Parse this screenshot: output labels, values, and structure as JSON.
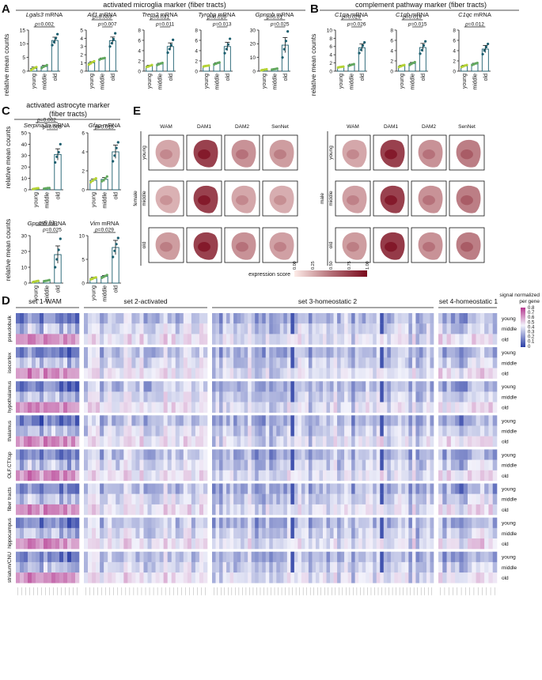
{
  "panel_a": {
    "letter": "A",
    "title": "activated microglia marker (fiber tracts)",
    "ylabel": "relative mean counts",
    "groups": [
      "young",
      "middle",
      "old"
    ],
    "charts": [
      {
        "gene": "Lgals3",
        "unit": "mRNA",
        "ymax": 15,
        "ticks": [
          0,
          5,
          10,
          15
        ],
        "values": [
          1,
          1.7,
          11.2
        ],
        "errors": [
          0.5,
          0.4,
          1.2
        ],
        "points": [
          [
            0.4,
            0.9,
            1.2,
            1.5
          ],
          [
            1.1,
            1.6,
            1.9,
            2.2
          ],
          [
            9.5,
            10.6,
            12.0,
            13.5
          ]
        ],
        "pvals": [
          {
            "text": "p=0.002",
            "from": 0,
            "to": 2
          }
        ]
      },
      {
        "gene": "Aif1",
        "unit": "mRNA",
        "ymax": 5,
        "ticks": [
          0,
          1,
          2,
          3,
          4,
          5
        ],
        "values": [
          1,
          1.5,
          3.7
        ],
        "errors": [
          0.15,
          0.1,
          0.45
        ],
        "points": [
          [
            0.8,
            0.95,
            1.1,
            1.2
          ],
          [
            1.4,
            1.5,
            1.55,
            1.6
          ],
          [
            3.0,
            3.4,
            3.9,
            4.6
          ]
        ],
        "pvals": [
          {
            "text": "p=0.007",
            "from": 1,
            "to": 2
          },
          {
            "text": "p=0.003",
            "from": 0,
            "to": 2
          }
        ]
      },
      {
        "gene": "Trem2",
        "unit": "mRNA",
        "ymax": 8,
        "ticks": [
          0,
          2,
          4,
          6,
          8
        ],
        "values": [
          1,
          1.4,
          4.8
        ],
        "errors": [
          0.15,
          0.15,
          0.7
        ],
        "points": [
          [
            0.8,
            0.9,
            1.05,
            1.2
          ],
          [
            1.2,
            1.35,
            1.5,
            1.6
          ],
          [
            3.6,
            4.3,
            5.1,
            6.1
          ]
        ],
        "pvals": [
          {
            "text": "p=0.011",
            "from": 1,
            "to": 2
          },
          {
            "text": "p=0.031",
            "from": 0,
            "to": 2
          }
        ]
      },
      {
        "gene": "Tyrobp",
        "unit": "mRNA",
        "ymax": 8,
        "ticks": [
          0,
          2,
          4,
          6,
          8
        ],
        "values": [
          1,
          1.5,
          4.8
        ],
        "errors": [
          0.1,
          0.15,
          0.8
        ],
        "points": [
          [
            0.9,
            1.0,
            1.05,
            1.1
          ],
          [
            1.3,
            1.45,
            1.6,
            1.7
          ],
          [
            3.5,
            4.3,
            5.2,
            6.3
          ]
        ],
        "pvals": [
          {
            "text": "p=0.013",
            "from": 1,
            "to": 2
          },
          {
            "text": "p=0.016",
            "from": 0,
            "to": 2
          }
        ]
      },
      {
        "gene": "Gpnmb",
        "unit": "mRNA",
        "ymax": 30,
        "ticks": [
          0,
          10,
          20,
          30
        ],
        "values": [
          1,
          1.5,
          19
        ],
        "errors": [
          0.3,
          0.3,
          5.5
        ],
        "points": [
          [
            0.6,
            0.9,
            1.2,
            1.4
          ],
          [
            1.2,
            1.4,
            1.6,
            1.9
          ],
          [
            10,
            16,
            22,
            29
          ]
        ],
        "pvals": [
          {
            "text": "p=0.025",
            "from": 1,
            "to": 2
          },
          {
            "text": "p=0.01",
            "from": 0,
            "to": 2
          }
        ]
      }
    ]
  },
  "panel_b": {
    "letter": "B",
    "title": "complement pathway marker (fiber tracts)",
    "ylabel": "relative mean counts",
    "groups": [
      "young",
      "middle",
      "old"
    ],
    "charts": [
      {
        "gene": "C1qa",
        "unit": "mRNA",
        "ymax": 10,
        "ticks": [
          0,
          2,
          4,
          6,
          8,
          10
        ],
        "values": [
          1,
          1.5,
          5.7
        ],
        "errors": [
          0.1,
          0.2,
          0.9
        ],
        "points": [
          [
            0.9,
            1.0,
            1.05,
            1.1
          ],
          [
            1.3,
            1.45,
            1.6,
            1.7
          ],
          [
            4.4,
            5.2,
            6.2,
            7.0
          ]
        ],
        "pvals": [
          {
            "text": "p=0.026",
            "from": 1,
            "to": 2
          },
          {
            "text": "p=0.029",
            "from": 0,
            "to": 2
          }
        ]
      },
      {
        "gene": "C1qb",
        "unit": "mRNA",
        "ymax": 8,
        "ticks": [
          0,
          2,
          4,
          6,
          8
        ],
        "values": [
          1,
          1.5,
          4.6
        ],
        "errors": [
          0.15,
          0.2,
          0.8
        ],
        "points": [
          [
            0.8,
            0.95,
            1.1,
            1.2
          ],
          [
            1.2,
            1.4,
            1.6,
            1.75
          ],
          [
            3.4,
            4.1,
            5.0,
            5.8
          ]
        ],
        "pvals": [
          {
            "text": "p=0.015",
            "from": 1,
            "to": 2
          },
          {
            "text": "p=0.019",
            "from": 0,
            "to": 2
          }
        ]
      },
      {
        "gene": "C1qc",
        "unit": "mRNA",
        "ymax": 8,
        "ticks": [
          0,
          2,
          4,
          6,
          8
        ],
        "values": [
          1,
          1.4,
          4.3
        ],
        "errors": [
          0.15,
          0.15,
          0.7
        ],
        "points": [
          [
            0.8,
            0.95,
            1.1,
            1.2
          ],
          [
            1.2,
            1.35,
            1.5,
            1.6
          ],
          [
            3.3,
            4.0,
            4.7,
            5.3
          ]
        ],
        "pvals": [
          {
            "text": "p=0.012",
            "from": 0,
            "to": 2
          }
        ]
      }
    ]
  },
  "panel_c": {
    "letter": "C",
    "title_line1": "activated astrocyte marker",
    "title_line2": "(fiber tracts)",
    "ylabel": "relative mean counts",
    "groups": [
      "young",
      "middle",
      "old"
    ],
    "charts": [
      {
        "gene": "Serpina3n",
        "unit": "mRNA",
        "ymax": 50,
        "ticks": [
          0,
          10,
          20,
          30,
          40,
          50
        ],
        "values": [
          1,
          1.3,
          31
        ],
        "errors": [
          0.3,
          0.3,
          5
        ],
        "points": [
          [
            0.6,
            0.9,
            1.2,
            1.4
          ],
          [
            1.0,
            1.2,
            1.5,
            1.6
          ],
          [
            24,
            29,
            33,
            40
          ]
        ],
        "pvals": [
          {
            "text": "p=0.008",
            "from": 1,
            "to": 2
          },
          {
            "text": "p=0.002",
            "from": 0,
            "to": 2
          }
        ]
      },
      {
        "gene": "Gfap",
        "unit": "mRNA",
        "ymax": 6,
        "ticks": [
          0,
          2,
          4,
          6
        ],
        "values": [
          1,
          1.1,
          4
        ],
        "errors": [
          0.15,
          0.2,
          0.7
        ],
        "points": [
          [
            0.8,
            0.95,
            1.1,
            1.2
          ],
          [
            0.9,
            1.0,
            1.2,
            1.4
          ],
          [
            3.0,
            3.6,
            4.4,
            5.0
          ]
        ],
        "pvals": [
          {
            "text": "p=0.015",
            "from": 0,
            "to": 2
          }
        ]
      },
      {
        "gene": "Gpnmb",
        "unit": "mRNA",
        "ymax": 30,
        "ticks": [
          0,
          10,
          20,
          30
        ],
        "values": [
          1,
          1.5,
          18
        ],
        "errors": [
          0.3,
          0.3,
          5.5
        ],
        "points": [
          [
            0.6,
            0.9,
            1.2,
            1.4
          ],
          [
            1.2,
            1.4,
            1.6,
            1.9
          ],
          [
            10,
            15,
            21,
            28
          ]
        ],
        "pvals": [
          {
            "text": "p=0.025",
            "from": 1,
            "to": 2
          },
          {
            "text": "p=0.01",
            "from": 0,
            "to": 2
          }
        ]
      },
      {
        "gene": "Vim",
        "unit": "mRNA",
        "ymax": 10,
        "ticks": [
          0,
          5,
          10
        ],
        "values": [
          1,
          1.4,
          7.5
        ],
        "errors": [
          0.2,
          0.2,
          1.5
        ],
        "points": [
          [
            0.8,
            0.9,
            1.1,
            1.2
          ],
          [
            1.1,
            1.3,
            1.5,
            1.7
          ],
          [
            5.5,
            6.8,
            8.2,
            9.5
          ]
        ],
        "pvals": [
          {
            "text": "p=0.029",
            "from": 0,
            "to": 2
          }
        ]
      }
    ]
  },
  "panel_e": {
    "letter": "E",
    "columns": [
      "WAM",
      "DAM1",
      "DAM2",
      "SenNet"
    ],
    "rows": [
      "young",
      "middle",
      "old"
    ],
    "sex_left": "female",
    "sex_right": "male",
    "intensity_female": [
      [
        0.35,
        0.85,
        0.45,
        0.4
      ],
      [
        0.3,
        0.85,
        0.35,
        0.32
      ],
      [
        0.4,
        0.85,
        0.45,
        0.38
      ]
    ],
    "intensity_male": [
      [
        0.35,
        0.85,
        0.45,
        0.55
      ],
      [
        0.38,
        0.85,
        0.45,
        0.55
      ],
      [
        0.4,
        0.88,
        0.45,
        0.55
      ]
    ],
    "colorbar_label": "expression score",
    "colorbar_ticks": [
      "0.00",
      "0.25",
      "0.50",
      "0.75",
      "1.00"
    ],
    "colorbar_colors": [
      "#fdece8",
      "#7a0a1c"
    ]
  },
  "panel_d": {
    "letter": "D",
    "sets": [
      "set 1-WAM",
      "set 2-activated",
      "set 3-homeostatic 2",
      "set 4-homeostatic 1"
    ],
    "set_genes": [
      16,
      31,
      62,
      14
    ],
    "regions": [
      "pseudobulk",
      "isocortex",
      "hypothalamus",
      "thalamus",
      "OLF.CTXsp",
      "fiber tracts",
      "hippocampus",
      "striatum/CNU"
    ],
    "ages": [
      "young",
      "middle",
      "old"
    ],
    "legend_title_line1": "signal normalized",
    "legend_title_line2": "per gene",
    "legend_ticks": [
      "0.8",
      "0.7",
      "0.6",
      "0.5",
      "0.4",
      "0.3",
      "0.2",
      "0.1",
      "0"
    ],
    "colors": {
      "low": "#2b3fa6",
      "mid": "#f2f2fb",
      "high": "#b5388f"
    }
  },
  "colors": {
    "young": "#b5d334",
    "middle": "#62a85e",
    "old": "#1b5e6e",
    "bar_edge": "#1b5e6e"
  }
}
